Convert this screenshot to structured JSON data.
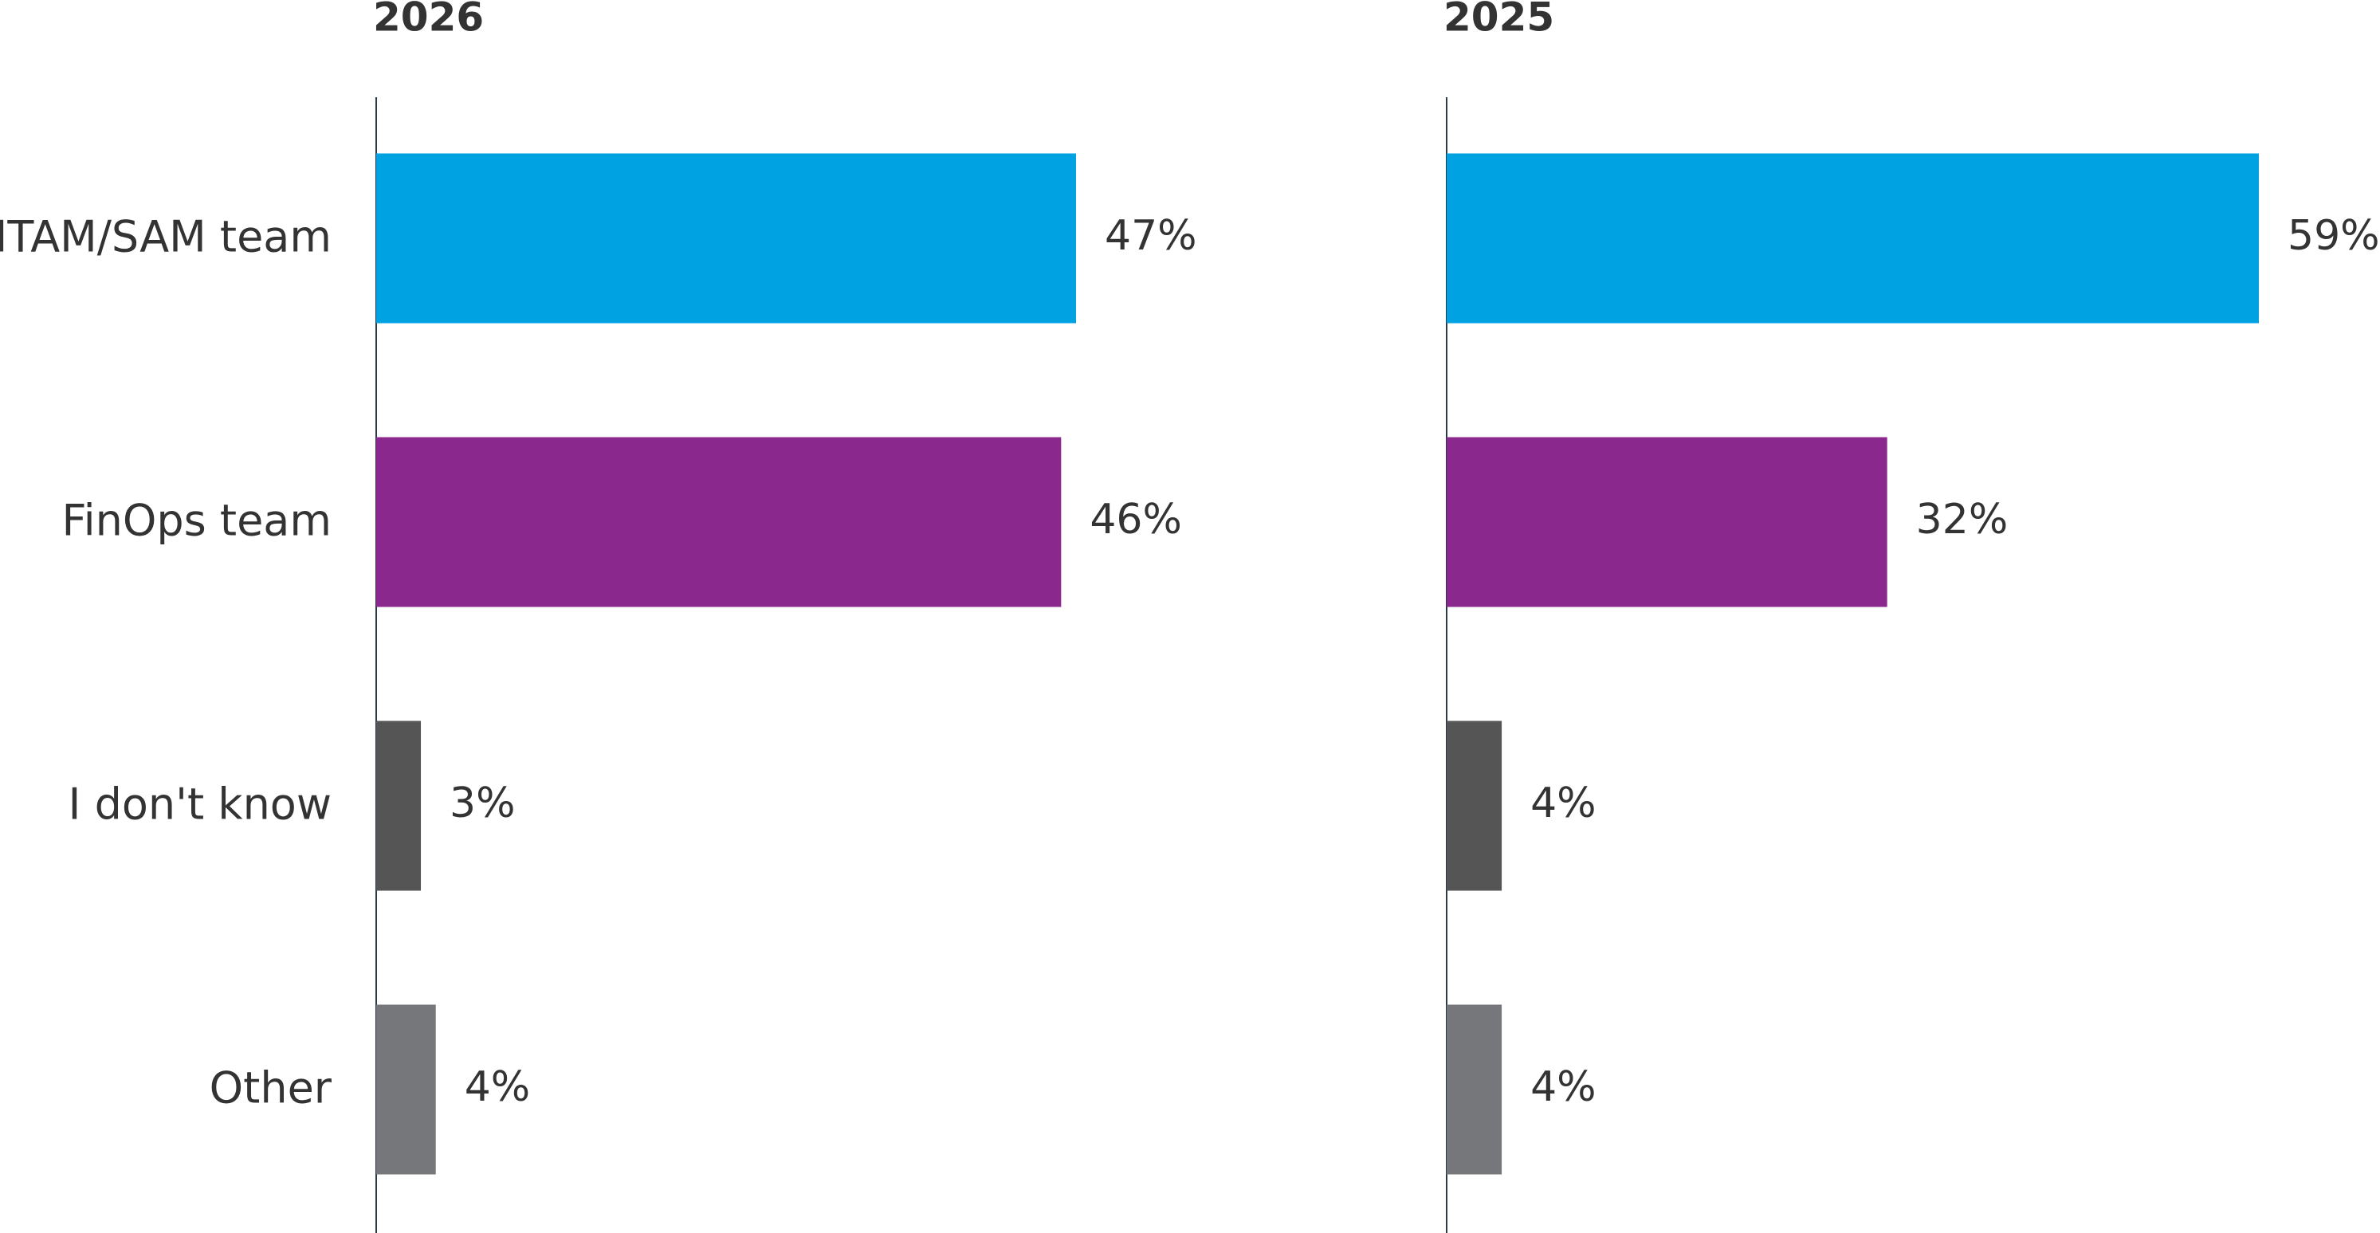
{
  "chart_data": [
    {
      "type": "bar",
      "orientation": "horizontal",
      "title": "2026",
      "categories": [
        "ITAM/SAM team",
        "FinOps team",
        "I don't know",
        "Other"
      ],
      "values": [
        47,
        46,
        3,
        4
      ],
      "value_labels": [
        "47%",
        "46%",
        "3%",
        "4%"
      ],
      "colors": [
        "#00a2e1",
        "#8b288d",
        "#555555",
        "#76777a"
      ]
    },
    {
      "type": "bar",
      "orientation": "horizontal",
      "title": "2025",
      "values": [
        59,
        32,
        4,
        4
      ],
      "value_labels": [
        "59%",
        "32%",
        "4%",
        "4%"
      ],
      "colors": [
        "#00a2e1",
        "#8b288d",
        "#555555",
        "#76777a"
      ]
    }
  ]
}
